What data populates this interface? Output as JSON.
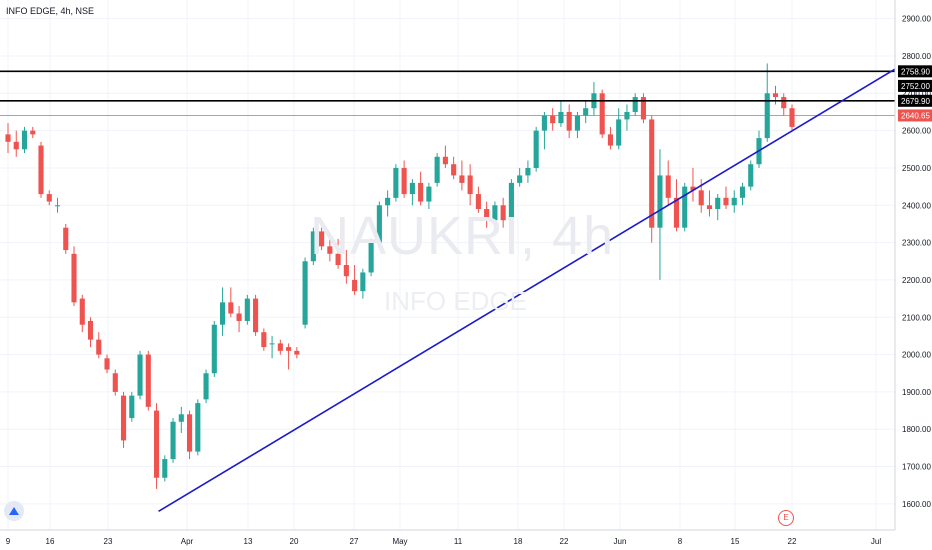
{
  "header": {
    "title": "INFO EDGE, 4h, NSE"
  },
  "watermark": {
    "symbol": "NAUKRI, 4h",
    "name": "INFO EDGE"
  },
  "earnings_badge": "E",
  "colors": {
    "up": "#26a69a",
    "down": "#ef5350",
    "trendline": "#1a1acc",
    "level": "#000000",
    "last_price": "#ef5350",
    "grid": "#f0f3fa"
  },
  "chart_data": {
    "type": "candlestick",
    "title": "INFO EDGE, 4h, NSE",
    "ylim": [
      1530,
      2950
    ],
    "y_ticks": [
      1600,
      1700,
      1800,
      1900,
      2000,
      2100,
      2200,
      2300,
      2400,
      2500,
      2600,
      2700,
      2800,
      2900
    ],
    "y_tick_labels": [
      "1600.00",
      "1700.00",
      "1800.00",
      "1900.00",
      "2000.00",
      "2100.00",
      "2200.00",
      "2300.00",
      "2400.00",
      "2500.00",
      "2600.00",
      "2700.00",
      "2800.00",
      "2900.00"
    ],
    "x_labels": [
      "9",
      "16",
      "23",
      "Apr",
      "13",
      "20",
      "27",
      "May",
      "11",
      "18",
      "22",
      "Jun",
      "8",
      "15",
      "22",
      "Jul"
    ],
    "price_levels": [
      {
        "label": "2758.90",
        "value": 2758.9,
        "style": "black"
      },
      {
        "label": "2752.00",
        "value": 2752.0,
        "style": "black"
      },
      {
        "label": "2679.90",
        "value": 2679.9,
        "style": "black"
      },
      {
        "label": "2640.65",
        "value": 2640.65,
        "style": "last"
      }
    ],
    "horizontal_lines": [
      2758.9,
      2679.9,
      2640.65
    ],
    "trendline": {
      "from_candle": 0,
      "from_value": 1580,
      "to_value": 2765,
      "to_extend": 97
    },
    "candles": [
      [
        2590,
        2620,
        2540,
        2570
      ],
      [
        2570,
        2600,
        2530,
        2550
      ],
      [
        2550,
        2610,
        2540,
        2600
      ],
      [
        2600,
        2610,
        2580,
        2590
      ],
      [
        2560,
        2570,
        2420,
        2430
      ],
      [
        2430,
        2440,
        2400,
        2410
      ],
      [
        2400,
        2420,
        2380,
        2400
      ],
      [
        2340,
        2350,
        2270,
        2280
      ],
      [
        2270,
        2290,
        2130,
        2140
      ],
      [
        2150,
        2160,
        2060,
        2080
      ],
      [
        2090,
        2100,
        2020,
        2040
      ],
      [
        2040,
        2060,
        1990,
        2000
      ],
      [
        1990,
        2000,
        1950,
        1960
      ],
      [
        1950,
        1960,
        1890,
        1900
      ],
      [
        1890,
        1900,
        1750,
        1770
      ],
      [
        1830,
        1900,
        1820,
        1890
      ],
      [
        1890,
        2010,
        1880,
        2000
      ],
      [
        2000,
        2010,
        1850,
        1860
      ],
      [
        1850,
        1870,
        1640,
        1670
      ],
      [
        1670,
        1730,
        1660,
        1720
      ],
      [
        1720,
        1830,
        1710,
        1820
      ],
      [
        1820,
        1860,
        1790,
        1840
      ],
      [
        1840,
        1850,
        1720,
        1740
      ],
      [
        1740,
        1880,
        1730,
        1870
      ],
      [
        1880,
        1960,
        1870,
        1950
      ],
      [
        1950,
        2090,
        1940,
        2080
      ],
      [
        2080,
        2180,
        2050,
        2140
      ],
      [
        2140,
        2180,
        2100,
        2110
      ],
      [
        2110,
        2130,
        2060,
        2090
      ],
      [
        2090,
        2160,
        2080,
        2150
      ],
      [
        2150,
        2160,
        2050,
        2060
      ],
      [
        2060,
        2070,
        2010,
        2020
      ],
      [
        2030,
        2050,
        1990,
        2030
      ],
      [
        2030,
        2040,
        2000,
        2010
      ],
      [
        2020,
        2030,
        1960,
        2010
      ],
      [
        2010,
        2020,
        1990,
        2000
      ],
      [
        2080,
        2260,
        2070,
        2250
      ],
      [
        2250,
        2340,
        2240,
        2330
      ],
      [
        2330,
        2340,
        2280,
        2290
      ],
      [
        2290,
        2320,
        2250,
        2270
      ],
      [
        2270,
        2310,
        2230,
        2240
      ],
      [
        2240,
        2280,
        2190,
        2210
      ],
      [
        2200,
        2240,
        2160,
        2170
      ],
      [
        2170,
        2230,
        2150,
        2220
      ],
      [
        2220,
        2310,
        2210,
        2300
      ],
      [
        2300,
        2410,
        2290,
        2400
      ],
      [
        2400,
        2440,
        2370,
        2420
      ],
      [
        2420,
        2510,
        2410,
        2500
      ],
      [
        2500,
        2520,
        2420,
        2430
      ],
      [
        2430,
        2470,
        2400,
        2460
      ],
      [
        2460,
        2490,
        2400,
        2410
      ],
      [
        2410,
        2460,
        2390,
        2450
      ],
      [
        2460,
        2540,
        2450,
        2530
      ],
      [
        2530,
        2560,
        2500,
        2510
      ],
      [
        2510,
        2530,
        2470,
        2480
      ],
      [
        2480,
        2520,
        2440,
        2460
      ],
      [
        2480,
        2510,
        2400,
        2430
      ],
      [
        2430,
        2450,
        2380,
        2390
      ],
      [
        2390,
        2410,
        2340,
        2360
      ],
      [
        2360,
        2410,
        2340,
        2400
      ],
      [
        2400,
        2420,
        2340,
        2360
      ],
      [
        2360,
        2470,
        2350,
        2460
      ],
      [
        2460,
        2500,
        2450,
        2480
      ],
      [
        2480,
        2520,
        2460,
        2500
      ],
      [
        2500,
        2610,
        2490,
        2600
      ],
      [
        2600,
        2650,
        2550,
        2640
      ],
      [
        2640,
        2660,
        2600,
        2620
      ],
      [
        2620,
        2680,
        2610,
        2650
      ],
      [
        2650,
        2670,
        2580,
        2600
      ],
      [
        2600,
        2650,
        2580,
        2640
      ],
      [
        2640,
        2680,
        2620,
        2660
      ],
      [
        2660,
        2730,
        2640,
        2700
      ],
      [
        2700,
        2710,
        2580,
        2590
      ],
      [
        2590,
        2610,
        2550,
        2560
      ],
      [
        2560,
        2660,
        2550,
        2630
      ],
      [
        2630,
        2670,
        2600,
        2650
      ],
      [
        2650,
        2700,
        2640,
        2690
      ],
      [
        2690,
        2700,
        2620,
        2630
      ],
      [
        2630,
        2640,
        2300,
        2340
      ],
      [
        2340,
        2550,
        2200,
        2480
      ],
      [
        2480,
        2520,
        2400,
        2420
      ],
      [
        2420,
        2470,
        2330,
        2340
      ],
      [
        2340,
        2460,
        2330,
        2450
      ],
      [
        2450,
        2500,
        2410,
        2440
      ],
      [
        2440,
        2470,
        2380,
        2400
      ],
      [
        2400,
        2440,
        2370,
        2390
      ],
      [
        2390,
        2430,
        2360,
        2420
      ],
      [
        2420,
        2450,
        2390,
        2400
      ],
      [
        2400,
        2440,
        2380,
        2420
      ],
      [
        2420,
        2460,
        2400,
        2450
      ],
      [
        2450,
        2520,
        2440,
        2510
      ],
      [
        2510,
        2600,
        2500,
        2580
      ],
      [
        2580,
        2780,
        2570,
        2700
      ],
      [
        2700,
        2720,
        2670,
        2690
      ],
      [
        2690,
        2700,
        2640,
        2660
      ],
      [
        2660,
        2670,
        2600,
        2610
      ]
    ]
  }
}
